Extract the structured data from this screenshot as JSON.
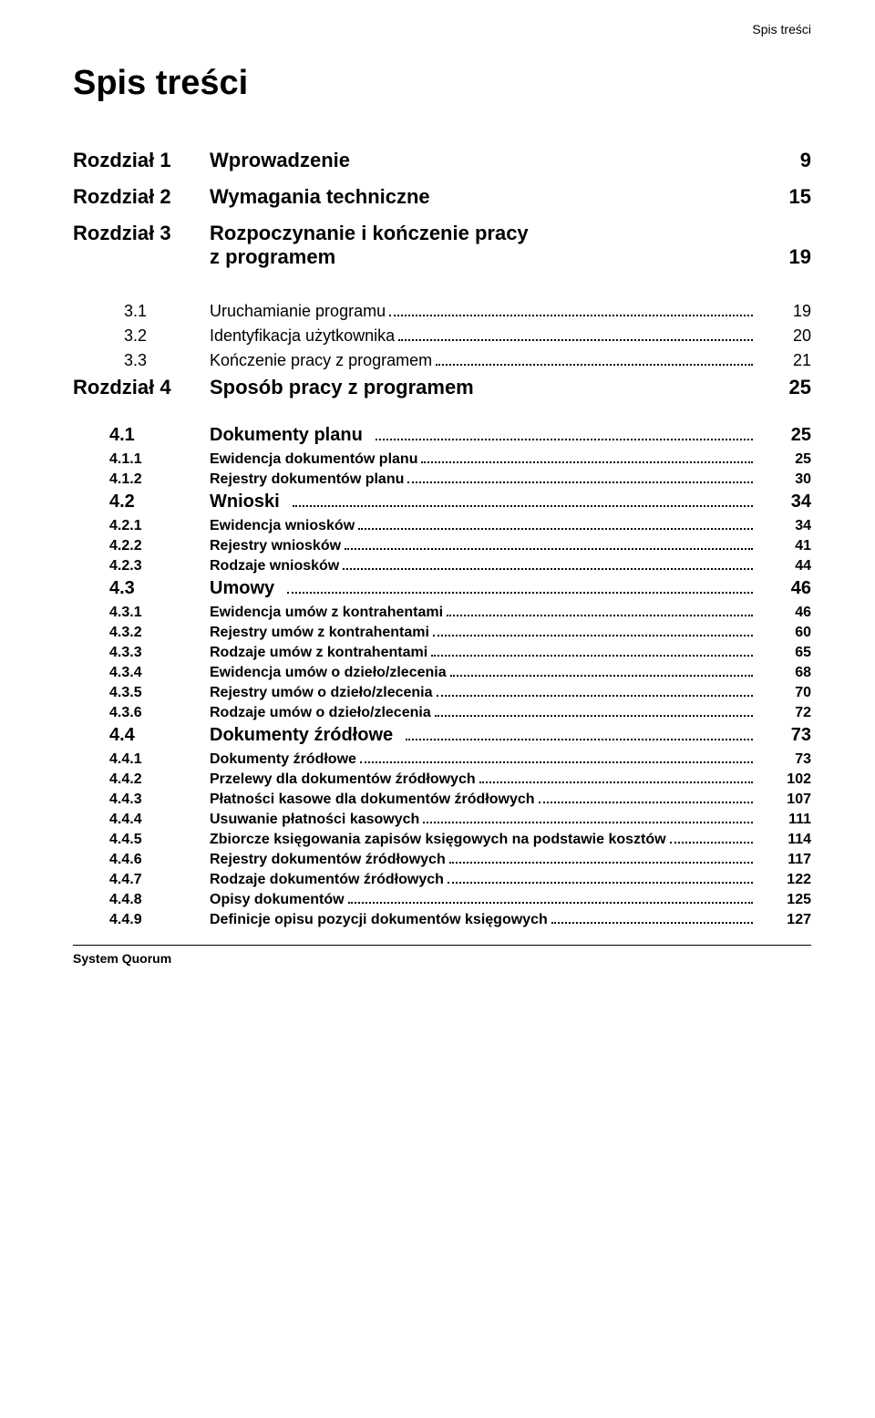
{
  "header_right": "Spis treści",
  "main_title": "Spis treści",
  "footer": "System Quorum",
  "colors": {
    "bg": "#ffffff",
    "text": "#000000"
  },
  "chapters_top": [
    {
      "num": "Rozdział 1",
      "title": "Wprowadzenie",
      "page": "9"
    },
    {
      "num": "Rozdział 2",
      "title": "Wymagania techniczne",
      "page": "15"
    },
    {
      "num": "Rozdział 3",
      "title_line1": "Rozpoczynanie i kończenie pracy",
      "title_line2": "z programem",
      "page": "19"
    }
  ],
  "subs_ch3": [
    {
      "num": "3.1",
      "title": "Uruchamianie programu",
      "page": "19"
    },
    {
      "num": "3.2",
      "title": "Identyfikacja użytkownika",
      "page": "20"
    },
    {
      "num": "3.3",
      "title": "Kończenie pracy z programem",
      "page": "21"
    }
  ],
  "chapter4": {
    "num": "Rozdział 4",
    "title": "Sposób pracy z programem",
    "page": "25"
  },
  "sections": [
    {
      "type": "h2",
      "num": "4.1",
      "title": "Dokumenty planu",
      "page": "25"
    },
    {
      "type": "h3",
      "num": "4.1.1",
      "title": "Ewidencja dokumentów planu",
      "page": "25"
    },
    {
      "type": "h3",
      "num": "4.1.2",
      "title": "Rejestry dokumentów planu",
      "page": "30"
    },
    {
      "type": "h2",
      "num": "4.2",
      "title": "Wnioski",
      "page": "34"
    },
    {
      "type": "h3",
      "num": "4.2.1",
      "title": "Ewidencja wniosków",
      "page": "34"
    },
    {
      "type": "h3",
      "num": "4.2.2",
      "title": "Rejestry wniosków",
      "page": "41"
    },
    {
      "type": "h3",
      "num": "4.2.3",
      "title": "Rodzaje wniosków",
      "page": "44"
    },
    {
      "type": "h2",
      "num": "4.3",
      "title": "Umowy",
      "page": "46"
    },
    {
      "type": "h3",
      "num": "4.3.1",
      "title": "Ewidencja umów z kontrahentami",
      "page": "46"
    },
    {
      "type": "h3",
      "num": "4.3.2",
      "title": "Rejestry umów z kontrahentami",
      "page": "60"
    },
    {
      "type": "h3",
      "num": "4.3.3",
      "title": "Rodzaje umów z kontrahentami",
      "page": "65"
    },
    {
      "type": "h3",
      "num": "4.3.4",
      "title": "Ewidencja umów o dzieło/zlecenia",
      "page": "68"
    },
    {
      "type": "h3",
      "num": "4.3.5",
      "title": "Rejestry umów o dzieło/zlecenia",
      "page": "70"
    },
    {
      "type": "h3",
      "num": "4.3.6",
      "title": "Rodzaje umów o dzieło/zlecenia",
      "page": "72"
    },
    {
      "type": "h2",
      "num": "4.4",
      "title": "Dokumenty źródłowe",
      "page": "73"
    },
    {
      "type": "h3",
      "num": "4.4.1",
      "title": "Dokumenty źródłowe",
      "page": "73"
    },
    {
      "type": "h3",
      "num": "4.4.2",
      "title": "Przelewy dla dokumentów źródłowych",
      "page": "102"
    },
    {
      "type": "h3",
      "num": "4.4.3",
      "title": "Płatności kasowe dla dokumentów źródłowych",
      "page": "107"
    },
    {
      "type": "h3",
      "num": "4.4.4",
      "title": "Usuwanie płatności kasowych",
      "page": "111"
    },
    {
      "type": "h3",
      "num": "4.4.5",
      "title": "Zbiorcze księgowania zapisów księgowych na podstawie kosztów",
      "page": "114"
    },
    {
      "type": "h3",
      "num": "4.4.6",
      "title": "Rejestry dokumentów źródłowych",
      "page": "117"
    },
    {
      "type": "h3",
      "num": "4.4.7",
      "title": "Rodzaje dokumentów źródłowych",
      "page": "122"
    },
    {
      "type": "h3",
      "num": "4.4.8",
      "title": "Opisy dokumentów",
      "page": "125"
    },
    {
      "type": "h3",
      "num": "4.4.9",
      "title": "Definicje opisu pozycji dokumentów księgowych",
      "page": "127"
    }
  ]
}
